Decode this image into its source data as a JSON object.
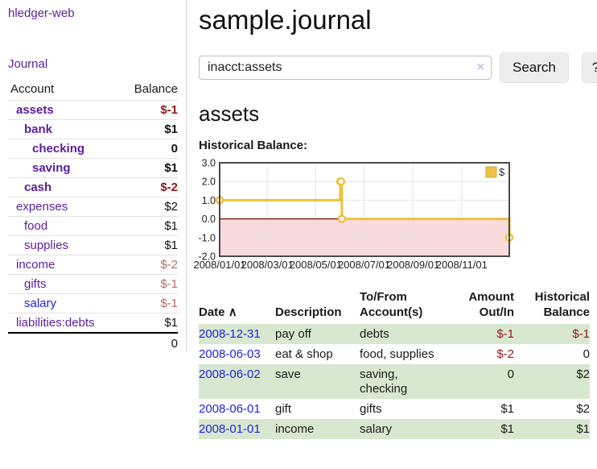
{
  "sidebar": {
    "brand": "hledger-web",
    "journal_link": "Journal",
    "accounts": {
      "header_account": "Account",
      "header_balance": "Balance",
      "rows": [
        {
          "name": "assets",
          "depth": 1,
          "emphasized": true,
          "balance": "$-1",
          "balance_tone": "neg-strong"
        },
        {
          "name": "bank",
          "depth": 2,
          "emphasized": true,
          "balance": "$1",
          "balance_tone": "plain"
        },
        {
          "name": "checking",
          "depth": 3,
          "emphasized": true,
          "balance": "0",
          "balance_tone": "plain"
        },
        {
          "name": "saving",
          "depth": 3,
          "emphasized": true,
          "balance": "$1",
          "balance_tone": "plain"
        },
        {
          "name": "cash",
          "depth": 2,
          "emphasized": true,
          "balance": "$-2",
          "balance_tone": "neg-strong"
        },
        {
          "name": "expenses",
          "depth": 1,
          "emphasized": false,
          "balance": "$2",
          "balance_tone": "plain"
        },
        {
          "name": "food",
          "depth": 2,
          "emphasized": false,
          "balance": "$1",
          "balance_tone": "plain"
        },
        {
          "name": "supplies",
          "depth": 2,
          "emphasized": false,
          "balance": "$1",
          "balance_tone": "plain"
        },
        {
          "name": "income",
          "depth": 1,
          "emphasized": false,
          "balance": "$-2",
          "balance_tone": "neg-muted"
        },
        {
          "name": "gifts",
          "depth": 2,
          "emphasized": false,
          "balance": "$-1",
          "balance_tone": "neg-muted"
        },
        {
          "name": "salary",
          "depth": 2,
          "emphasized": false,
          "link_tone": "blue",
          "balance": "$-1",
          "balance_tone": "neg-muted"
        },
        {
          "name": "liabilities:debts",
          "depth": 1,
          "emphasized": false,
          "balance": "$1",
          "balance_tone": "plain"
        }
      ],
      "total": "0"
    }
  },
  "main": {
    "title": "sample.journal",
    "search": {
      "value": "inacct:assets",
      "clear_icon": "×",
      "search_button": "Search",
      "help_button": "?"
    },
    "account_heading": "assets",
    "chart_label": "Historical Balance:"
  },
  "chart_data": {
    "type": "line",
    "step": true,
    "title": "Historical Balance:",
    "series": [
      {
        "name": "$",
        "color": "#edc240",
        "points": [
          [
            "2008-01-01",
            1
          ],
          [
            "2008-06-01",
            2
          ],
          [
            "2008-06-02",
            2
          ],
          [
            "2008-06-03",
            0
          ],
          [
            "2008-12-31",
            -1
          ]
        ]
      }
    ],
    "x_range": [
      "2008-01-01",
      "2008-12-31"
    ],
    "ylim": [
      -2,
      3
    ],
    "yticks": [
      "3.0",
      "2.0",
      "1.0",
      "0.0",
      "-1.0",
      "-2.0"
    ],
    "ytick_values": [
      3,
      2,
      1,
      0,
      -1,
      -2
    ],
    "xtick_labels": [
      "2008/01/01",
      "2008/03/01",
      "2008/05/01",
      "2008/07/01",
      "2008/09/01",
      "2008/11/01"
    ],
    "grid": true,
    "legend_position": "top-right",
    "negative_region_fill": "#f9dbdb",
    "zero_line_color": "#8b0000",
    "border_color": "#4a4a4a",
    "grid_color": "#e4e4e4"
  },
  "register": {
    "headers": {
      "date": "Date",
      "date_sort_icon": "∧",
      "description": "Description",
      "accounts_line1": "To/From",
      "accounts_line2": "Account(s)",
      "amount_line1": "Amount",
      "amount_line2": "Out/In",
      "balance_line1": "Historical",
      "balance_line2": "Balance"
    },
    "rows": [
      {
        "date": "2008-12-31",
        "description": "pay off",
        "accounts": "debts",
        "amount": "$-1",
        "amount_negative": true,
        "balance": "$-1",
        "balance_negative": true
      },
      {
        "date": "2008-06-03",
        "description": "eat & shop",
        "accounts": "food, supplies",
        "amount": "$-2",
        "amount_negative": true,
        "balance": "0",
        "balance_negative": false
      },
      {
        "date": "2008-06-02",
        "description": "save",
        "accounts": "saving,\nchecking",
        "amount": "0",
        "amount_negative": false,
        "balance": "$2",
        "balance_negative": false
      },
      {
        "date": "2008-06-01",
        "description": "gift",
        "accounts": "gifts",
        "amount": "$1",
        "amount_negative": false,
        "balance": "$2",
        "balance_negative": false
      },
      {
        "date": "2008-01-01",
        "description": "income",
        "accounts": "salary",
        "amount": "$1",
        "amount_negative": false,
        "balance": "$1",
        "balance_negative": false
      }
    ]
  }
}
